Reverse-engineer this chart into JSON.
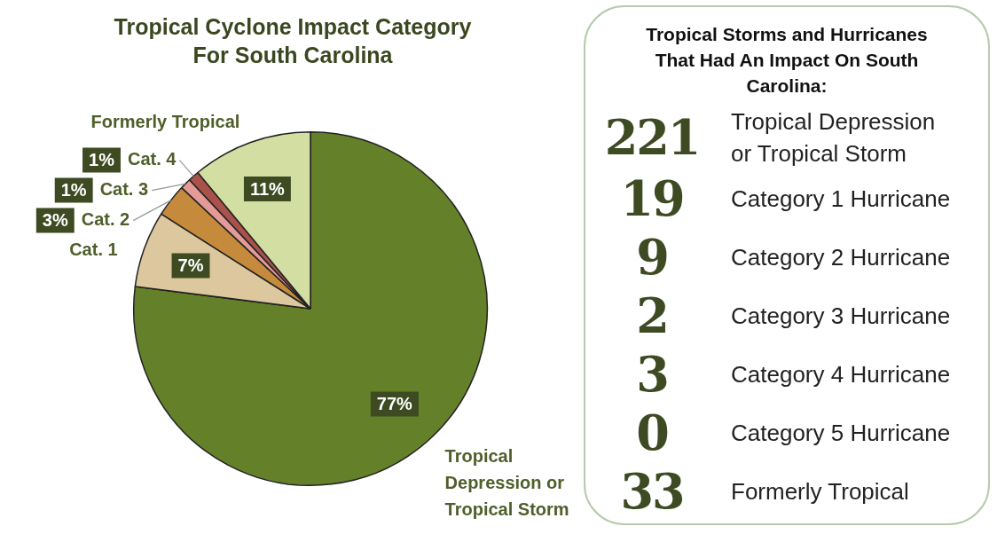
{
  "chart_data": [
    {
      "type": "pie",
      "title": "Tropical Cyclone Impact Category For South Carolina",
      "categories": [
        "Tropical Depression or Tropical Storm",
        "Cat. 1",
        "Cat. 2",
        "Cat. 3",
        "Cat. 4",
        "Formerly Tropical"
      ],
      "values": [
        77,
        7,
        3,
        1,
        1,
        11
      ],
      "colors": [
        "#64812a",
        "#dcc79e",
        "#c68a3c",
        "#e49a97",
        "#a8524b",
        "#d3dea3"
      ],
      "value_labels": [
        "77%",
        "7%",
        "3%",
        "1%",
        "1%",
        "11%"
      ],
      "legend": false
    },
    {
      "type": "other",
      "title": "Tropical Storms and Hurricanes That Had An Impact On South Carolina:",
      "categories": [
        "Tropical Depression or Tropical Storm",
        "Category 1 Hurricane",
        "Category 2 Hurricane",
        "Category 3 Hurricane",
        "Category 4 Hurricane",
        "Category 5 Hurricane",
        "Formerly Tropical"
      ],
      "values": [
        221,
        19,
        9,
        2,
        3,
        0,
        33
      ],
      "data_labels": true
    }
  ]
}
